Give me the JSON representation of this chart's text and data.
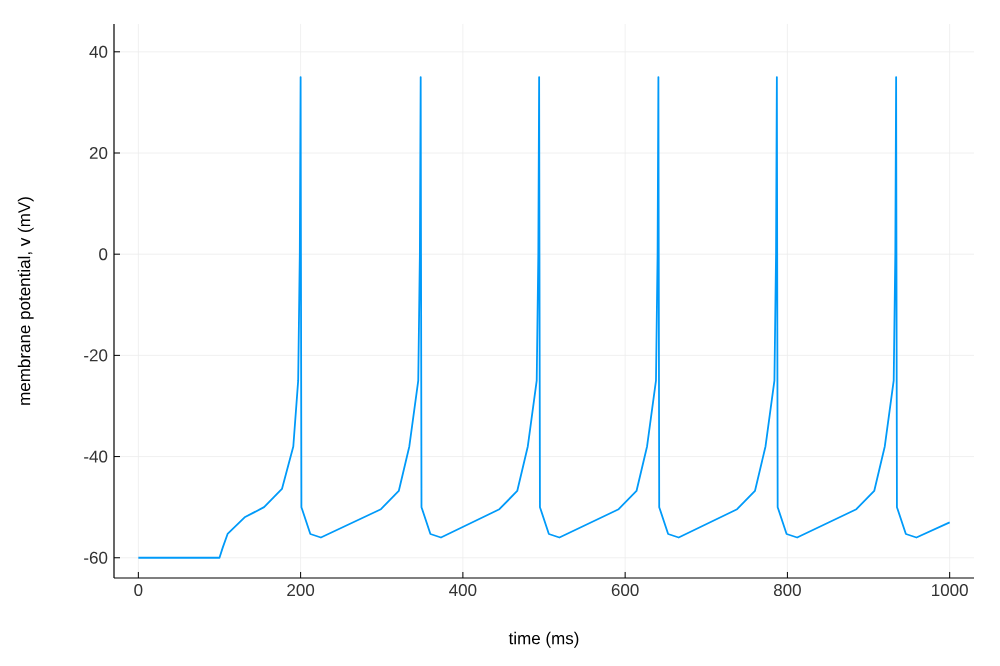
{
  "chart_data": {
    "type": "line",
    "xlabel": "time (ms)",
    "ylabel": "membrane potential, v (mV)",
    "color": "#009af9",
    "grid": true,
    "marker": "none",
    "line_style": "solid",
    "xlim": [
      -30,
      1030
    ],
    "ylim": [
      -64,
      45.5
    ],
    "xticks": [
      0,
      200,
      400,
      600,
      800,
      1000
    ],
    "yticks": [
      -60,
      -40,
      -20,
      0,
      20,
      40
    ],
    "x": [
      0,
      100,
      104,
      110,
      131,
      155,
      177,
      191,
      197,
      199,
      200,
      201,
      212,
      225,
      299,
      321,
      334,
      345,
      347,
      348,
      349,
      360,
      373,
      445,
      467,
      480,
      491,
      493,
      494,
      495,
      506,
      519,
      592,
      614,
      627,
      638,
      640,
      641,
      642,
      653,
      666,
      738,
      760,
      773,
      784,
      786,
      787,
      788,
      799,
      812,
      885,
      907,
      920,
      931,
      933,
      934,
      935,
      946,
      959,
      1000
    ],
    "values": [
      -60,
      -60,
      -58,
      -55.3,
      -52,
      -50,
      -46.4,
      -38,
      -25,
      0,
      35,
      -50,
      -55.3,
      -56,
      -50.4,
      -46.8,
      -38,
      -25,
      0,
      35,
      -50,
      -55.3,
      -56,
      -50.4,
      -46.8,
      -38,
      -25,
      0,
      35,
      -50,
      -55.3,
      -56,
      -50.4,
      -46.8,
      -38,
      -25,
      0,
      35,
      -50,
      -55.3,
      -56,
      -50.4,
      -46.8,
      -38,
      -25,
      0,
      35,
      -50,
      -55.3,
      -56,
      -50.4,
      -46.8,
      -38,
      -25,
      0,
      35,
      -50,
      -55.3,
      -56,
      -53
    ]
  }
}
